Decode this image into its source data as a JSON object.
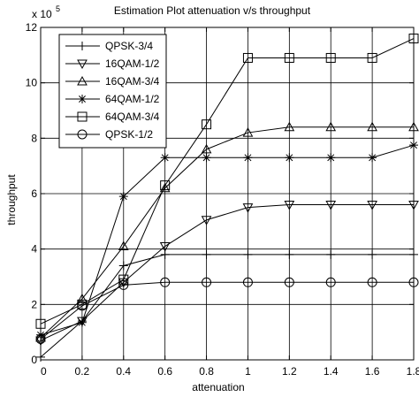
{
  "chart_data": {
    "type": "line",
    "title": "Estimation Plot attenuation v/s throughput",
    "xlabel": "attenuation",
    "ylabel": "throughput",
    "exponent_label": "x 10",
    "exponent_power": "5",
    "xlim": [
      0,
      1.8
    ],
    "ylim": [
      0,
      12
    ],
    "xticks": [
      0,
      0.2,
      0.4,
      0.6,
      0.8,
      1,
      1.2,
      1.4,
      1.6,
      1.8
    ],
    "xtick_labels": [
      "0",
      "0.2",
      "0.4",
      "0.6",
      "0.8",
      "1",
      "1.2",
      "1.4",
      "1.6",
      "1.8"
    ],
    "yticks": [
      0,
      2,
      4,
      6,
      8,
      10,
      12
    ],
    "ytick_labels": [
      "0",
      "2",
      "4",
      "6",
      "8",
      "10",
      "12"
    ],
    "grid": true,
    "legend_position": "top-left",
    "x": [
      0,
      0.2,
      0.4,
      0.6,
      0.8,
      1,
      1.2,
      1.4,
      1.6,
      1.8
    ],
    "series": [
      {
        "name": "QPSK-3/4",
        "marker": "plus",
        "values": [
          0.1,
          1.4,
          3.4,
          3.8,
          3.8,
          3.8,
          3.8,
          3.8,
          3.8,
          3.8
        ]
      },
      {
        "name": "16QAM-1/2",
        "marker": "triangle-down",
        "values": [
          0.7,
          1.4,
          2.8,
          4.1,
          5.05,
          5.5,
          5.6,
          5.6,
          5.6,
          5.6
        ]
      },
      {
        "name": "16QAM-3/4",
        "marker": "triangle-up",
        "values": [
          0.8,
          2.2,
          4.1,
          6.2,
          7.6,
          8.2,
          8.4,
          8.4,
          8.4,
          8.4
        ]
      },
      {
        "name": "64QAM-1/2",
        "marker": "star",
        "values": [
          0.9,
          1.35,
          5.9,
          7.3,
          7.3,
          7.3,
          7.3,
          7.3,
          7.3,
          7.75
        ]
      },
      {
        "name": "64QAM-3/4",
        "marker": "square",
        "values": [
          1.3,
          2.0,
          2.9,
          6.3,
          8.5,
          10.9,
          10.9,
          10.9,
          10.9,
          11.6
        ]
      },
      {
        "name": "QPSK-1/2",
        "marker": "circle",
        "values": [
          0.75,
          1.95,
          2.7,
          2.8,
          2.8,
          2.8,
          2.8,
          2.8,
          2.8,
          2.8
        ]
      }
    ]
  }
}
